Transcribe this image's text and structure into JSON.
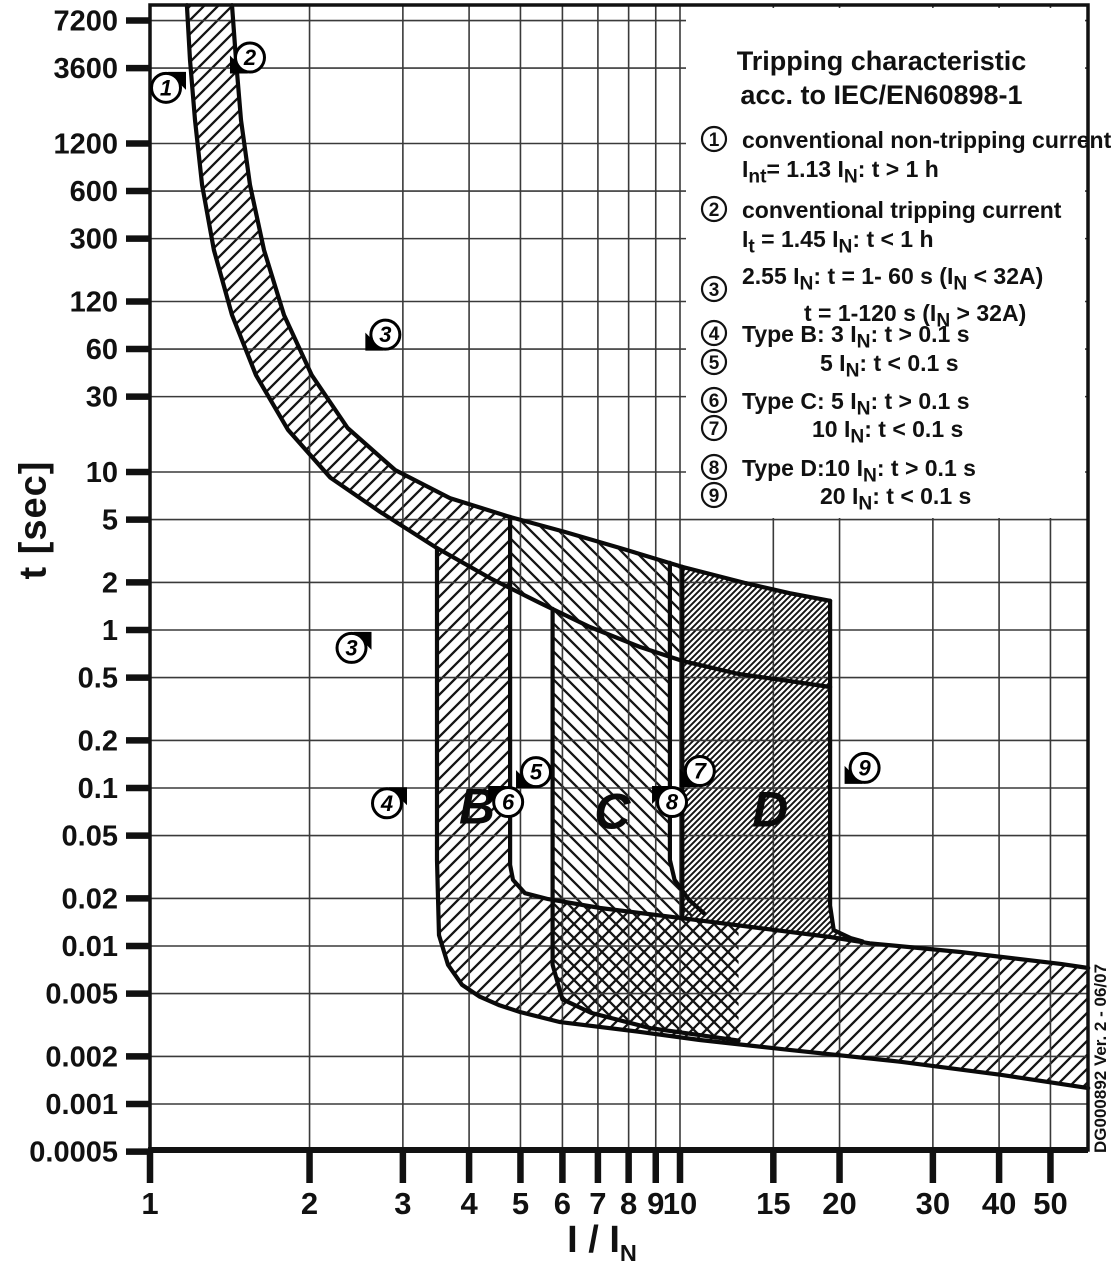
{
  "chart_data": {
    "type": "line",
    "title": "Tripping characteristic acc. to IEC/EN60898-1",
    "xlabel": "I / I~N~",
    "ylabel": "t [sec]",
    "x_scale": "log",
    "y_scale": "log",
    "x_range": [
      1,
      59
    ],
    "y_range": [
      0.0005,
      9000
    ],
    "grid": "gridlines at every labeled tick",
    "x_ticks": [
      [
        1,
        "1"
      ],
      [
        2,
        "2"
      ],
      [
        3,
        "3"
      ],
      [
        4,
        "4"
      ],
      [
        5,
        "5"
      ],
      [
        6,
        "6"
      ],
      [
        7,
        "7"
      ],
      [
        8,
        "8"
      ],
      [
        9,
        "9"
      ],
      [
        10,
        "10"
      ],
      [
        15,
        "15"
      ],
      [
        20,
        "20"
      ],
      [
        30,
        "30"
      ],
      [
        40,
        "40"
      ],
      [
        50,
        "50"
      ]
    ],
    "y_ticks": [
      [
        7200,
        "7200"
      ],
      [
        3600,
        "3600"
      ],
      [
        1200,
        "1200"
      ],
      [
        600,
        "600"
      ],
      [
        300,
        "300"
      ],
      [
        120,
        "120"
      ],
      [
        60,
        "60"
      ],
      [
        30,
        "30"
      ],
      [
        10,
        "10"
      ],
      [
        5,
        "5"
      ],
      [
        2,
        "2"
      ],
      [
        1,
        "1"
      ],
      [
        0.5,
        "0.5"
      ],
      [
        0.2,
        "0.2"
      ],
      [
        0.1,
        "0.1"
      ],
      [
        0.05,
        "0.05"
      ],
      [
        0.02,
        "0.02"
      ],
      [
        0.01,
        "0.01"
      ],
      [
        0.005,
        "0.005"
      ],
      [
        0.002,
        "0.002"
      ],
      [
        0.001,
        "0.001"
      ],
      [
        0.0005,
        "0.0005"
      ]
    ],
    "curves": [
      {
        "name": "conventional-tripping-upper-1.45IN",
        "points": [
          [
            1.428,
            9000
          ],
          [
            1.453,
            4060
          ],
          [
            1.485,
            1690
          ],
          [
            1.544,
            655
          ],
          [
            1.641,
            254
          ],
          [
            1.79,
            98.6
          ],
          [
            2.02,
            41
          ],
          [
            2.36,
            19
          ],
          [
            2.9,
            10.3
          ],
          [
            3.68,
            6.84
          ],
          [
            4.78,
            5.19
          ],
          [
            6.07,
            4.17
          ],
          [
            7.72,
            3.3
          ],
          [
            10.1,
            2.51
          ],
          [
            13.3,
            1.98
          ],
          [
            16.1,
            1.71
          ],
          [
            19.2,
            1.53
          ]
        ]
      },
      {
        "name": "conventional-non-tripping-lower-1.13IN",
        "points": [
          [
            1.174,
            9000
          ],
          [
            1.19,
            4060
          ],
          [
            1.216,
            1690
          ],
          [
            1.254,
            655
          ],
          [
            1.32,
            254
          ],
          [
            1.428,
            98.6
          ],
          [
            1.585,
            41
          ],
          [
            1.821,
            18.5
          ],
          [
            2.19,
            9.2
          ],
          [
            2.72,
            5.58
          ],
          [
            3.48,
            3.3
          ],
          [
            4.38,
            2.13
          ],
          [
            5.45,
            1.48
          ],
          [
            6.76,
            1.045
          ],
          [
            8.41,
            0.78
          ],
          [
            10.1,
            0.637
          ],
          [
            12.9,
            0.527
          ],
          [
            16.1,
            0.475
          ],
          [
            19.2,
            0.436
          ]
        ]
      },
      {
        "name": "type-B-magnetic-min-3IN",
        "points": [
          [
            3.48,
            3.3
          ],
          [
            3.48,
            0.035
          ],
          [
            3.51,
            0.0117
          ],
          [
            3.65,
            0.0076
          ],
          [
            3.88,
            0.00567
          ],
          [
            4.19,
            0.00478
          ],
          [
            4.57,
            0.00421
          ],
          [
            4.99,
            0.00382
          ],
          [
            5.94,
            0.0033
          ],
          [
            8.41,
            0.00286
          ],
          [
            10.9,
            0.00254
          ],
          [
            16.1,
            0.0022
          ],
          [
            26.1,
            0.00185
          ],
          [
            40.3,
            0.00153
          ],
          [
            58.9,
            0.00126
          ]
        ]
      },
      {
        "name": "type-B-magnetic-max-5IN",
        "points": [
          [
            4.78,
            5.19
          ],
          [
            4.78,
            0.0326
          ],
          [
            4.84,
            0.0262
          ],
          [
            5.1,
            0.0216
          ],
          [
            5.64,
            0.0198
          ],
          [
            7.07,
            0.0174
          ],
          [
            10.1,
            0.015
          ],
          [
            14.1,
            0.013
          ],
          [
            19.2,
            0.0114
          ],
          [
            22.8,
            0.0104
          ],
          [
            33.8,
            0.00916
          ],
          [
            52.3,
            0.0077
          ],
          [
            58.9,
            0.00726
          ]
        ]
      },
      {
        "name": "type-C-magnetic-min-5IN",
        "points": [
          [
            5.75,
            1.36
          ],
          [
            5.75,
            0.0076
          ],
          [
            6.0,
            0.0046
          ],
          [
            6.8,
            0.00377
          ],
          [
            8.8,
            0.00302
          ],
          [
            12.9,
            0.00252
          ]
        ]
      },
      {
        "name": "type-C-magnetic-max-10IN",
        "points": [
          [
            9.57,
            2.66
          ],
          [
            9.57,
            0.035
          ],
          [
            9.77,
            0.0262
          ],
          [
            10.4,
            0.0196
          ],
          [
            11.1,
            0.0161
          ]
        ]
      },
      {
        "name": "type-D-magnetic-min-10IN",
        "points": [
          [
            10.1,
            2.51
          ],
          [
            10.1,
            0.015
          ]
        ]
      },
      {
        "name": "type-D-magnetic-max-20IN",
        "points": [
          [
            19.2,
            1.53
          ],
          [
            19.2,
            0.018
          ],
          [
            19.5,
            0.0126
          ],
          [
            21,
            0.0112
          ],
          [
            22.1,
            0.0107
          ]
        ]
      }
    ],
    "regions": [
      {
        "name": "thermal-band-and-type-B",
        "hatch": "fwd",
        "points": [
          [
            1.174,
            9000
          ],
          [
            1.19,
            4060
          ],
          [
            1.216,
            1690
          ],
          [
            1.254,
            655
          ],
          [
            1.32,
            254
          ],
          [
            1.428,
            98.6
          ],
          [
            1.585,
            41
          ],
          [
            1.821,
            18.5
          ],
          [
            2.19,
            9.2
          ],
          [
            2.72,
            5.58
          ],
          [
            3.48,
            3.3
          ],
          [
            3.48,
            0.035
          ],
          [
            3.51,
            0.0117
          ],
          [
            3.65,
            0.0076
          ],
          [
            3.88,
            0.00567
          ],
          [
            4.19,
            0.00478
          ],
          [
            4.57,
            0.00421
          ],
          [
            4.99,
            0.00382
          ],
          [
            5.94,
            0.0033
          ],
          [
            8.41,
            0.00286
          ],
          [
            10.9,
            0.00254
          ],
          [
            16.1,
            0.0022
          ],
          [
            26.1,
            0.00185
          ],
          [
            40.3,
            0.00153
          ],
          [
            58.9,
            0.00126
          ],
          [
            58.9,
            0.00726
          ],
          [
            52.3,
            0.0077
          ],
          [
            33.8,
            0.00916
          ],
          [
            22.8,
            0.0104
          ],
          [
            19.2,
            0.0114
          ],
          [
            14.1,
            0.013
          ],
          [
            10.1,
            0.015
          ],
          [
            7.07,
            0.0174
          ],
          [
            5.64,
            0.0198
          ],
          [
            5.1,
            0.0216
          ],
          [
            4.84,
            0.0262
          ],
          [
            4.78,
            0.0326
          ],
          [
            4.78,
            5.19
          ],
          [
            3.68,
            6.84
          ],
          [
            2.9,
            10.3
          ],
          [
            2.36,
            19
          ],
          [
            2.02,
            41
          ],
          [
            1.79,
            98.6
          ],
          [
            1.641,
            254
          ],
          [
            1.544,
            655
          ],
          [
            1.485,
            1690
          ],
          [
            1.453,
            4060
          ],
          [
            1.428,
            9000
          ]
        ]
      },
      {
        "name": "type-C-band",
        "hatch": "back",
        "points": [
          [
            4.78,
            5.19
          ],
          [
            6.07,
            4.17
          ],
          [
            7.72,
            3.3
          ],
          [
            10.1,
            2.51
          ],
          [
            10.1,
            0.637
          ],
          [
            9.57,
            0.675
          ],
          [
            9.57,
            0.035
          ],
          [
            9.77,
            0.0262
          ],
          [
            10.4,
            0.0196
          ],
          [
            11.1,
            0.0161
          ],
          [
            10.1,
            0.015
          ],
          [
            7.07,
            0.0174
          ],
          [
            5.75,
            0.0185
          ],
          [
            5.75,
            1.36
          ],
          [
            5.45,
            1.48
          ],
          [
            4.78,
            1.71
          ]
        ]
      },
      {
        "name": "type-C-band-tail",
        "hatch": "back",
        "points": [
          [
            5.75,
            0.0185
          ],
          [
            5.78,
            0.0076
          ],
          [
            6.0,
            0.0046
          ],
          [
            6.8,
            0.00377
          ],
          [
            8.8,
            0.00302
          ],
          [
            12.9,
            0.00252
          ],
          [
            12.9,
            0.0133
          ],
          [
            10.1,
            0.015
          ],
          [
            7.07,
            0.0174
          ]
        ]
      },
      {
        "name": "type-D-band",
        "hatch": "dense",
        "points": [
          [
            10.1,
            2.51
          ],
          [
            13.3,
            1.98
          ],
          [
            16.1,
            1.71
          ],
          [
            19.2,
            1.53
          ],
          [
            19.2,
            0.018
          ],
          [
            19.5,
            0.0126
          ],
          [
            21,
            0.0112
          ],
          [
            22.1,
            0.0107
          ],
          [
            19.2,
            0.0114
          ],
          [
            14.1,
            0.013
          ],
          [
            10.1,
            0.015
          ]
        ]
      }
    ],
    "band_labels": [
      {
        "text": "B",
        "v": 4.14,
        "t": 0.0766
      },
      {
        "text": "C",
        "v": 7.45,
        "t": 0.0712
      },
      {
        "text": "D",
        "v": 14.8,
        "t": 0.0733
      }
    ],
    "markers": [
      {
        "num": "1",
        "v": 1.072,
        "t": 2700,
        "flag": "tr"
      },
      {
        "num": "2",
        "v": 1.544,
        "t": 4200,
        "flag": "bl"
      },
      {
        "num": "3",
        "v": 2.78,
        "t": 74,
        "flag": "bl"
      },
      {
        "num": "3",
        "v": 2.4,
        "t": 0.77,
        "flag": "tr"
      },
      {
        "num": "4",
        "v": 2.8,
        "t": 0.08,
        "flag": "tr"
      },
      {
        "num": "5",
        "v": 5.35,
        "t": 0.126,
        "flag": "bl"
      },
      {
        "num": "6",
        "v": 4.74,
        "t": 0.0815,
        "flag": "tl"
      },
      {
        "num": "7",
        "v": 10.9,
        "t": 0.128,
        "flag": "bl"
      },
      {
        "num": "8",
        "v": 9.66,
        "t": 0.0815,
        "flag": "tl"
      },
      {
        "num": "9",
        "v": 22.3,
        "t": 0.134,
        "flag": "bl"
      }
    ],
    "legend": {
      "title": "Tripping characteristic",
      "subtitle": "acc. to IEC/EN60898-1",
      "items": [
        {
          "num": "1",
          "lines": [
            "conventional non-tripping current",
            "I~nt~= 1.13 I~N~: t > 1 h"
          ]
        },
        {
          "num": "2",
          "lines": [
            "conventional tripping current",
            "I~t~ = 1.45 I~N~: t < 1 h"
          ]
        },
        {
          "num": "3",
          "lines": [
            "2.55 I~N~: t = 1- 60 s (I~N~ < 32A)",
            "t = 1-120 s (I~N~ > 32A)"
          ]
        },
        {
          "num": "4",
          "lines": [
            "Type B: 3 I~N~: t > 0.1 s"
          ]
        },
        {
          "num": "5",
          "lines": [
            "5 I~N~: t < 0.1 s"
          ]
        },
        {
          "num": "6",
          "lines": [
            "Type C: 5 I~N~: t > 0.1 s"
          ]
        },
        {
          "num": "7",
          "lines": [
            "10 I~N~: t < 0.1 s"
          ]
        },
        {
          "num": "8",
          "lines": [
            "Type D:10 I~N~: t > 0.1 s"
          ]
        },
        {
          "num": "9",
          "lines": [
            "20 I~N~: t < 0.1 s"
          ]
        }
      ]
    },
    "footer": "DG000892 Ver. 2 - 06/07",
    "colors": {
      "ink": "#111111",
      "grid": "#3a3a3a",
      "background": "#ffffff"
    }
  }
}
